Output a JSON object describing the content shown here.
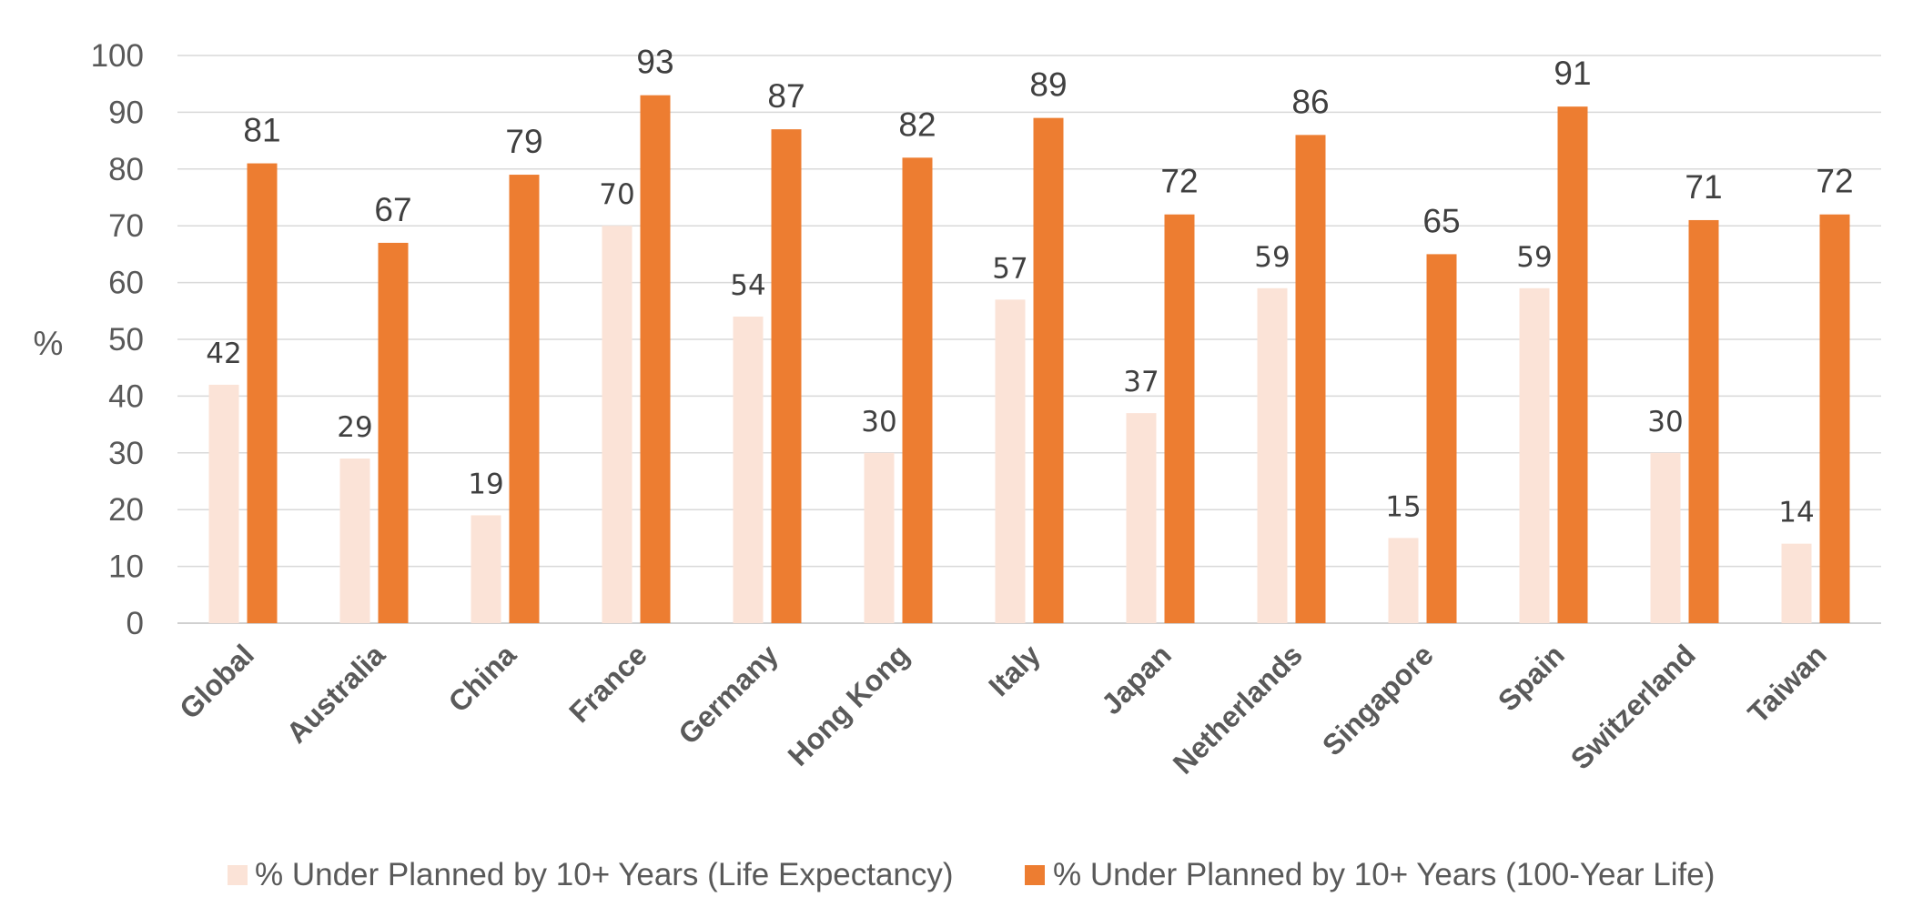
{
  "chart_data": {
    "type": "bar",
    "title": "",
    "xlabel": "",
    "ylabel": "%",
    "ylim": [
      0,
      100
    ],
    "yticks": [
      0,
      10,
      20,
      30,
      40,
      50,
      60,
      70,
      80,
      90,
      100
    ],
    "grid": true,
    "legend_position": "bottom",
    "categories": [
      "Global",
      "Australia",
      "China",
      "France",
      "Germany",
      "Hong Kong",
      "Italy",
      "Japan",
      "Netherlands",
      "Singapore",
      "Spain",
      "Switzerland",
      "Taiwan"
    ],
    "series": [
      {
        "name": "% Under Planned by 10+ Years (Life Expectancy)",
        "color": "#fbe3d7",
        "values": [
          42,
          29,
          19,
          70,
          54,
          30,
          57,
          37,
          59,
          15,
          59,
          30,
          14
        ]
      },
      {
        "name": "% Under Planned by 10+ Years (100-Year Life)",
        "color": "#ed7d31",
        "values": [
          81,
          67,
          79,
          93,
          87,
          82,
          89,
          72,
          86,
          65,
          91,
          71,
          72
        ]
      }
    ]
  }
}
